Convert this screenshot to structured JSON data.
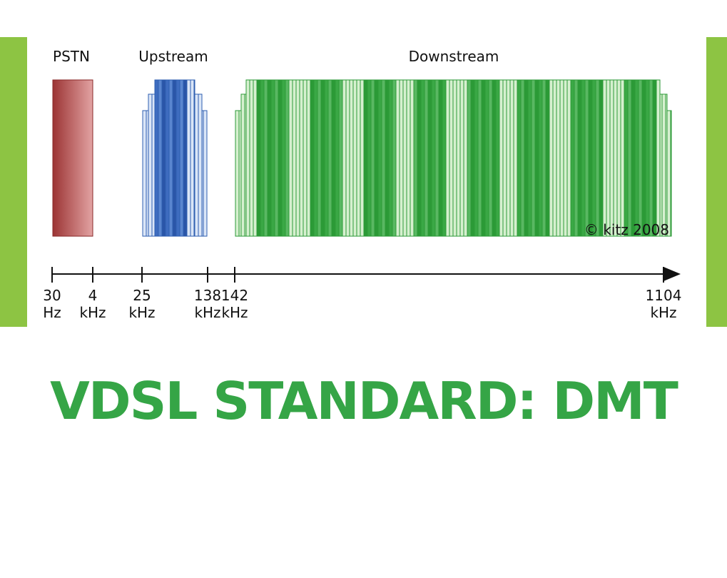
{
  "diagram": {
    "bands": [
      {
        "label": "PSTN"
      },
      {
        "label": "Upstream"
      },
      {
        "label": "Downstream"
      }
    ],
    "credit": "© kitz 2008",
    "ticks": [
      {
        "value": "30",
        "unit": "Hz"
      },
      {
        "value": "4",
        "unit": "kHz"
      },
      {
        "value": "25",
        "unit": "kHz"
      },
      {
        "value": "138",
        "unit": "kHz"
      },
      {
        "value": "142",
        "unit": "kHz"
      },
      {
        "value": "1104",
        "unit": "kHz"
      }
    ]
  },
  "title": "VDSL STANDARD: DMT"
}
